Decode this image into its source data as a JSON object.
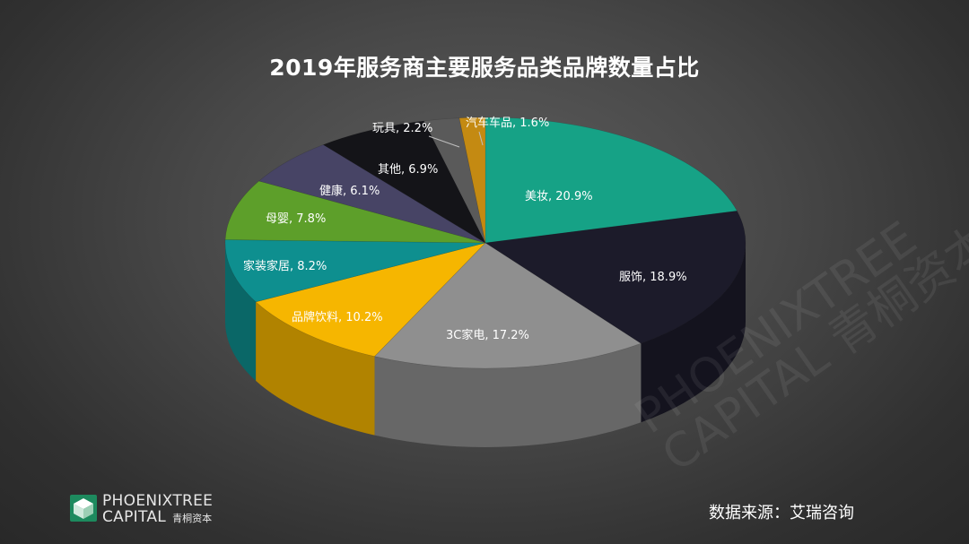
{
  "title": "2019年服务商主要服务品类品牌数量占比",
  "source_note": "数据来源：艾瑞咨询",
  "logo": {
    "line1": "PHOENIXTREE",
    "line2_en": "CAPITAL",
    "line2_cn": "青桐资本",
    "icon": "phoenix-cube-logo-icon",
    "color": "#1d8a5e"
  },
  "watermark": {
    "line1": "PHOENIXTREE",
    "line2": "CAPITAL 青桐资本"
  },
  "chart_data": {
    "type": "pie",
    "style": "3d-exploded",
    "title": "2019年服务商主要服务品类品牌数量占比",
    "legend": "none (labels on slices)",
    "slices": [
      {
        "label": "美妆",
        "value": 20.9,
        "display": "美妆, 20.9%",
        "color": "#16a286"
      },
      {
        "label": "服饰",
        "value": 18.9,
        "display": "服饰, 18.9%",
        "color": "#1c1b2a"
      },
      {
        "label": "3C家电",
        "value": 17.2,
        "display": "3C家电, 17.2%",
        "color": "#8f8f8f"
      },
      {
        "label": "品牌饮料",
        "value": 10.2,
        "display": "品牌饮料, 10.2%",
        "color": "#f6b600"
      },
      {
        "label": "家装家居",
        "value": 8.2,
        "display": "家装家居, 8.2%",
        "color": "#0e8f8f"
      },
      {
        "label": "母婴",
        "value": 7.8,
        "display": "母婴, 7.8%",
        "color": "#5d9f2a"
      },
      {
        "label": "健康",
        "value": 6.1,
        "display": "健康, 6.1%",
        "color": "#474465"
      },
      {
        "label": "其他",
        "value": 6.9,
        "display": "其他, 6.9%",
        "color": "#141418"
      },
      {
        "label": "玩具",
        "value": 2.2,
        "display": "玩具, 2.2%",
        "color": "#5a5a5a"
      },
      {
        "label": "汽车车品",
        "value": 1.6,
        "display": "汽车车品, 1.6%",
        "color": "#c48a12"
      }
    ]
  }
}
